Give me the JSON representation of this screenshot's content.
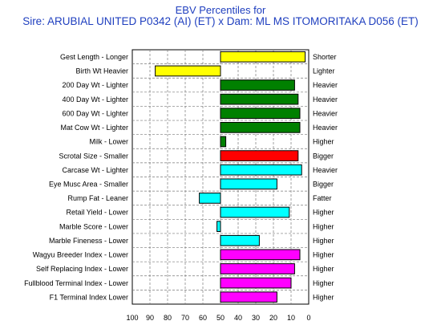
{
  "chart_data": {
    "type": "bar",
    "title": "EBV Percentiles for",
    "subtitle": "Sire: ARUBIAL UNITED P0342 (AI) (ET) x Dam: ML MS ITOMORITAKA D056 (ET)",
    "xlim": [
      100,
      0
    ],
    "baseline": 50,
    "x_ticks": [
      "100",
      "90",
      "80",
      "70",
      "60",
      "50",
      "40",
      "30",
      "20",
      "10",
      "0"
    ],
    "grid": true,
    "series": [
      {
        "trait": "Gest Length - Longer",
        "left_label": "Gest Length - Longer",
        "right_label": "Shorter",
        "value": 2,
        "color": "#ffff00"
      },
      {
        "trait": "Birth Wt - Heavier",
        "left_label": "Birth Wt    Heavier",
        "right_label": "Lighter",
        "value": 87,
        "color": "#ffff00"
      },
      {
        "trait": "200 Day Wt - Lighter",
        "left_label": "200 Day Wt - Lighter",
        "right_label": "Heavier",
        "value": 8,
        "color": "#008000"
      },
      {
        "trait": "400 Day Wt - Lighter",
        "left_label": "400 Day Wt - Lighter",
        "right_label": "Heavier",
        "value": 6,
        "color": "#008000"
      },
      {
        "trait": "600 Day Wt - Lighter",
        "left_label": "600 Day Wt - Lighter",
        "right_label": "Heavier",
        "value": 5,
        "color": "#008000"
      },
      {
        "trait": "Mat Cow Wt - Lighter",
        "left_label": "Mat Cow Wt - Lighter",
        "right_label": "Heavier",
        "value": 5,
        "color": "#008000"
      },
      {
        "trait": "Milk - Lower",
        "left_label": "Milk - Lower",
        "right_label": "Higher",
        "value": 47,
        "color": "#008000"
      },
      {
        "trait": "Scrotal Size - Smaller",
        "left_label": "Scrotal Size - Smaller",
        "right_label": "Bigger",
        "value": 6,
        "color": "#ff0000"
      },
      {
        "trait": "Carcase Wt - Lighter",
        "left_label": "Carcase Wt - Lighter",
        "right_label": "Heavier",
        "value": 4,
        "color": "#00ffff"
      },
      {
        "trait": "Eye Musc Area - Smaller",
        "left_label": "Eye Musc Area - Smaller",
        "right_label": "Bigger",
        "value": 18,
        "color": "#00ffff"
      },
      {
        "trait": "Rump Fat - Leaner",
        "left_label": "Rump Fat - Leaner",
        "right_label": "Fatter",
        "value": 62,
        "color": "#00ffff"
      },
      {
        "trait": "Retail Yield - Lower",
        "left_label": "Retail Yield - Lower",
        "right_label": "Higher",
        "value": 11,
        "color": "#00ffff"
      },
      {
        "trait": "Marble Score - Lower",
        "left_label": "Marble Score - Lower",
        "right_label": "Higher",
        "value": 52,
        "color": "#00ffff"
      },
      {
        "trait": "Marble Fineness - Lower",
        "left_label": "Marble Fineness - Lower",
        "right_label": "Higher",
        "value": 28,
        "color": "#00ffff"
      },
      {
        "trait": "Wagyu Breeder Index - Lower",
        "left_label": "Wagyu Breeder Index - Lower",
        "right_label": "Higher",
        "value": 5,
        "color": "#ff00ff"
      },
      {
        "trait": "Self Replacing Index - Lower",
        "left_label": "Self Replacing Index - Lower",
        "right_label": "Higher",
        "value": 8,
        "color": "#ff00ff"
      },
      {
        "trait": "Fullblood Terminal Index - Lower",
        "left_label": "Fullblood Terminal Index - Lower",
        "right_label": "Higher",
        "value": 10,
        "color": "#ff00ff"
      },
      {
        "trait": "F1 Terminal Index - Lower",
        "left_label": "F1 Terminal Index    Lower",
        "right_label": "Higher",
        "value": 18,
        "color": "#ff00ff"
      }
    ]
  }
}
